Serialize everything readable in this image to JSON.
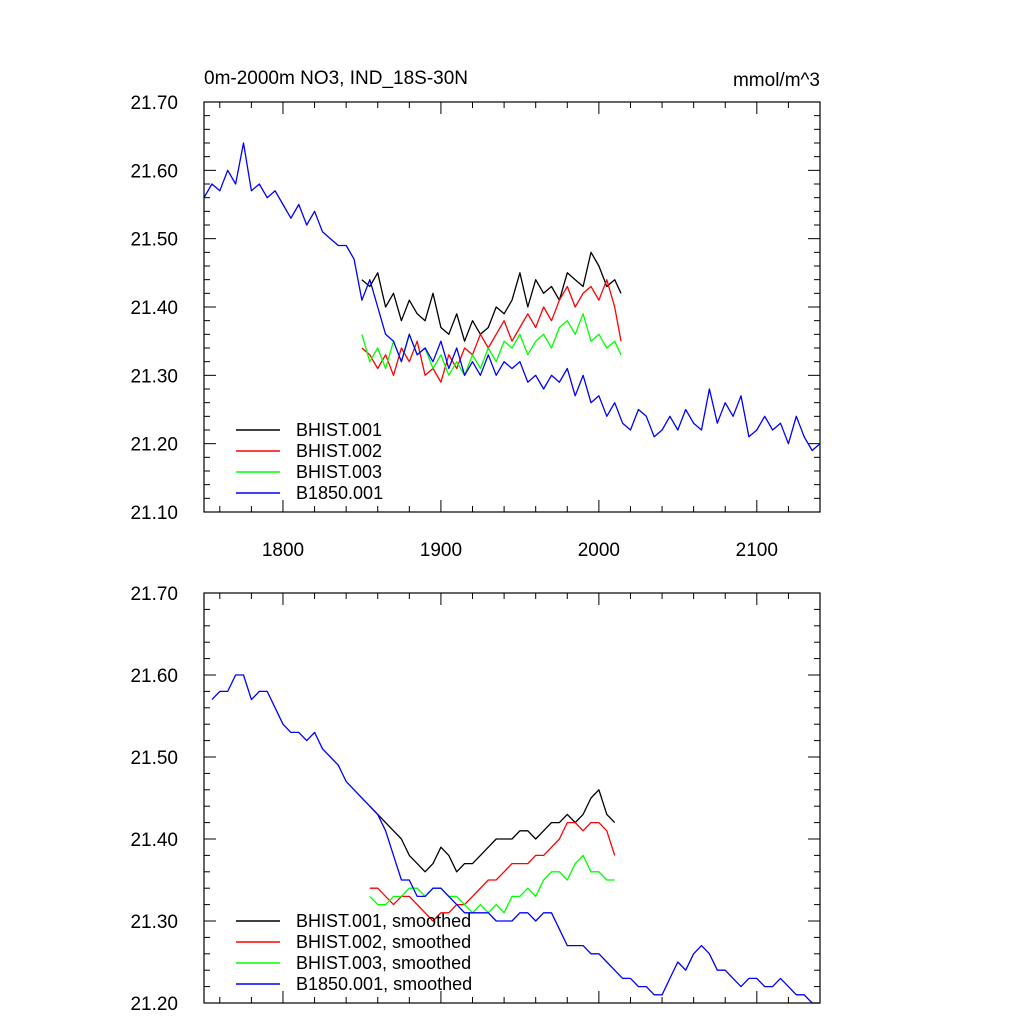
{
  "chart_data": [
    {
      "type": "line",
      "title": "0m-2000m NO3, IND_18S-30N",
      "units_label": "mmol/m^3",
      "xlim": [
        1750,
        2140
      ],
      "ylim": [
        21.1,
        21.7
      ],
      "x_ticks": [
        1800,
        1900,
        2000,
        2100
      ],
      "x_tick_labels": [
        "1800",
        "1900",
        "2000",
        "2100"
      ],
      "y_ticks": [
        21.1,
        21.2,
        21.3,
        21.4,
        21.5,
        21.6,
        21.7
      ],
      "y_tick_labels": [
        "21.10",
        "21.20",
        "21.30",
        "21.40",
        "21.50",
        "21.60",
        "21.70"
      ],
      "grid": false,
      "legend_position": "bottom-left",
      "series": [
        {
          "name": "BHIST.001",
          "color": "#000000",
          "x": [
            1850,
            1855,
            1860,
            1865,
            1870,
            1875,
            1880,
            1885,
            1890,
            1895,
            1900,
            1905,
            1910,
            1915,
            1920,
            1925,
            1930,
            1935,
            1940,
            1945,
            1950,
            1955,
            1960,
            1965,
            1970,
            1975,
            1980,
            1985,
            1990,
            1995,
            2000,
            2005,
            2010,
            2014
          ],
          "y": [
            21.44,
            21.43,
            21.45,
            21.4,
            21.42,
            21.38,
            21.41,
            21.39,
            21.38,
            21.42,
            21.37,
            21.36,
            21.39,
            21.35,
            21.38,
            21.36,
            21.37,
            21.4,
            21.39,
            21.41,
            21.45,
            21.4,
            21.44,
            21.42,
            21.43,
            21.41,
            21.45,
            21.44,
            21.43,
            21.48,
            21.46,
            21.43,
            21.44,
            21.42
          ]
        },
        {
          "name": "BHIST.002",
          "color": "#ff0000",
          "x": [
            1850,
            1855,
            1860,
            1865,
            1870,
            1875,
            1880,
            1885,
            1890,
            1895,
            1900,
            1905,
            1910,
            1915,
            1920,
            1925,
            1930,
            1935,
            1940,
            1945,
            1950,
            1955,
            1960,
            1965,
            1970,
            1975,
            1980,
            1985,
            1990,
            1995,
            2000,
            2005,
            2010,
            2014
          ],
          "y": [
            21.34,
            21.33,
            21.31,
            21.33,
            21.3,
            21.34,
            21.32,
            21.35,
            21.3,
            21.31,
            21.29,
            21.33,
            21.31,
            21.34,
            21.33,
            21.36,
            21.34,
            21.36,
            21.38,
            21.35,
            21.37,
            21.39,
            21.37,
            21.4,
            21.38,
            21.41,
            21.43,
            21.4,
            21.42,
            21.43,
            21.41,
            21.44,
            21.4,
            21.35
          ]
        },
        {
          "name": "BHIST.003",
          "color": "#00ff00",
          "x": [
            1850,
            1855,
            1860,
            1865,
            1870,
            1875,
            1880,
            1885,
            1890,
            1895,
            1900,
            1905,
            1910,
            1915,
            1920,
            1925,
            1930,
            1935,
            1940,
            1945,
            1950,
            1955,
            1960,
            1965,
            1970,
            1975,
            1980,
            1985,
            1990,
            1995,
            2000,
            2005,
            2010,
            2014
          ],
          "y": [
            21.36,
            21.32,
            21.34,
            21.31,
            21.35,
            21.32,
            21.36,
            21.33,
            21.34,
            21.31,
            21.33,
            21.3,
            21.32,
            21.3,
            21.33,
            21.31,
            21.34,
            21.32,
            21.35,
            21.34,
            21.36,
            21.33,
            21.35,
            21.36,
            21.34,
            21.37,
            21.38,
            21.36,
            21.39,
            21.35,
            21.36,
            21.34,
            21.35,
            21.33
          ]
        },
        {
          "name": "B1850.001",
          "color": "#0000ff",
          "x": [
            1750,
            1755,
            1760,
            1765,
            1770,
            1775,
            1780,
            1785,
            1790,
            1795,
            1800,
            1805,
            1810,
            1815,
            1820,
            1825,
            1830,
            1835,
            1840,
            1845,
            1850,
            1855,
            1860,
            1865,
            1870,
            1875,
            1880,
            1885,
            1890,
            1895,
            1900,
            1905,
            1910,
            1915,
            1920,
            1925,
            1930,
            1935,
            1940,
            1945,
            1950,
            1955,
            1960,
            1965,
            1970,
            1975,
            1980,
            1985,
            1990,
            1995,
            2000,
            2005,
            2010,
            2015,
            2020,
            2025,
            2030,
            2035,
            2040,
            2045,
            2050,
            2055,
            2060,
            2065,
            2070,
            2075,
            2080,
            2085,
            2090,
            2095,
            2100,
            2105,
            2110,
            2115,
            2120,
            2125,
            2130,
            2135,
            2140
          ],
          "y": [
            21.56,
            21.58,
            21.57,
            21.6,
            21.58,
            21.64,
            21.57,
            21.58,
            21.56,
            21.57,
            21.55,
            21.53,
            21.55,
            21.52,
            21.54,
            21.51,
            21.5,
            21.49,
            21.49,
            21.47,
            21.41,
            21.44,
            21.4,
            21.36,
            21.35,
            21.32,
            21.36,
            21.33,
            21.34,
            21.32,
            21.35,
            21.31,
            21.34,
            21.3,
            21.32,
            21.3,
            21.33,
            21.3,
            21.32,
            21.31,
            21.32,
            21.29,
            21.3,
            21.28,
            21.3,
            21.29,
            21.31,
            21.27,
            21.3,
            21.26,
            21.27,
            21.24,
            21.26,
            21.23,
            21.22,
            21.25,
            21.24,
            21.21,
            21.22,
            21.24,
            21.22,
            21.25,
            21.23,
            21.22,
            21.28,
            21.23,
            21.26,
            21.24,
            21.27,
            21.21,
            21.22,
            21.24,
            21.22,
            21.23,
            21.2,
            21.24,
            21.21,
            21.19,
            21.2
          ]
        }
      ]
    },
    {
      "type": "line",
      "xlim": [
        1750,
        2140
      ],
      "ylim": [
        21.2,
        21.7
      ],
      "y_ticks": [
        21.2,
        21.3,
        21.4,
        21.5,
        21.6,
        21.7
      ],
      "y_tick_labels": [
        "21.20",
        "21.30",
        "21.40",
        "21.50",
        "21.60",
        "21.70"
      ],
      "x_ticks": [
        1800,
        1900,
        2000,
        2100
      ],
      "grid": false,
      "legend_position": "bottom-left",
      "series": [
        {
          "name": "BHIST.001, smoothed",
          "color": "#000000",
          "x": [
            1855,
            1860,
            1865,
            1870,
            1875,
            1880,
            1885,
            1890,
            1895,
            1900,
            1905,
            1910,
            1915,
            1920,
            1925,
            1930,
            1935,
            1940,
            1945,
            1950,
            1955,
            1960,
            1965,
            1970,
            1975,
            1980,
            1985,
            1990,
            1995,
            2000,
            2005,
            2010
          ],
          "y": [
            21.44,
            21.43,
            21.42,
            21.41,
            21.4,
            21.38,
            21.37,
            21.36,
            21.37,
            21.39,
            21.38,
            21.36,
            21.37,
            21.37,
            21.38,
            21.39,
            21.4,
            21.4,
            21.4,
            21.41,
            21.41,
            21.4,
            21.41,
            21.42,
            21.42,
            21.43,
            21.42,
            21.43,
            21.45,
            21.46,
            21.43,
            21.42
          ]
        },
        {
          "name": "BHIST.002, smoothed",
          "color": "#ff0000",
          "x": [
            1855,
            1860,
            1865,
            1870,
            1875,
            1880,
            1885,
            1890,
            1895,
            1900,
            1905,
            1910,
            1915,
            1920,
            1925,
            1930,
            1935,
            1940,
            1945,
            1950,
            1955,
            1960,
            1965,
            1970,
            1975,
            1980,
            1985,
            1990,
            1995,
            2000,
            2005,
            2010
          ],
          "y": [
            21.34,
            21.34,
            21.33,
            21.32,
            21.33,
            21.33,
            21.32,
            21.31,
            21.3,
            21.31,
            21.31,
            21.32,
            21.32,
            21.33,
            21.34,
            21.35,
            21.35,
            21.36,
            21.37,
            21.37,
            21.37,
            21.38,
            21.38,
            21.39,
            21.4,
            21.42,
            21.42,
            21.41,
            21.42,
            21.42,
            21.41,
            21.38
          ]
        },
        {
          "name": "BHIST.003, smoothed",
          "color": "#00ff00",
          "x": [
            1855,
            1860,
            1865,
            1870,
            1875,
            1880,
            1885,
            1890,
            1895,
            1900,
            1905,
            1910,
            1915,
            1920,
            1925,
            1930,
            1935,
            1940,
            1945,
            1950,
            1955,
            1960,
            1965,
            1970,
            1975,
            1980,
            1985,
            1990,
            1995,
            2000,
            2005,
            2010
          ],
          "y": [
            21.33,
            21.32,
            21.32,
            21.33,
            21.33,
            21.34,
            21.34,
            21.33,
            21.34,
            21.34,
            21.33,
            21.33,
            21.32,
            21.31,
            21.32,
            21.31,
            21.32,
            21.31,
            21.33,
            21.33,
            21.34,
            21.33,
            21.35,
            21.36,
            21.36,
            21.35,
            21.37,
            21.38,
            21.36,
            21.36,
            21.35,
            21.35
          ]
        },
        {
          "name": "B1850.001, smoothed",
          "color": "#0000ff",
          "x": [
            1755,
            1760,
            1765,
            1770,
            1775,
            1780,
            1785,
            1790,
            1795,
            1800,
            1805,
            1810,
            1815,
            1820,
            1825,
            1830,
            1835,
            1840,
            1845,
            1850,
            1855,
            1860,
            1865,
            1870,
            1875,
            1880,
            1885,
            1890,
            1895,
            1900,
            1905,
            1910,
            1915,
            1920,
            1925,
            1930,
            1935,
            1940,
            1945,
            1950,
            1955,
            1960,
            1965,
            1970,
            1975,
            1980,
            1985,
            1990,
            1995,
            2000,
            2005,
            2010,
            2015,
            2020,
            2025,
            2030,
            2035,
            2040,
            2045,
            2050,
            2055,
            2060,
            2065,
            2070,
            2075,
            2080,
            2085,
            2090,
            2095,
            2100,
            2105,
            2110,
            2115,
            2120,
            2125,
            2130,
            2135,
            2140
          ],
          "y": [
            21.57,
            21.58,
            21.58,
            21.6,
            21.6,
            21.57,
            21.58,
            21.58,
            21.56,
            21.54,
            21.53,
            21.53,
            21.52,
            21.53,
            21.51,
            21.5,
            21.49,
            21.47,
            21.46,
            21.45,
            21.44,
            21.43,
            21.41,
            21.38,
            21.35,
            21.35,
            21.33,
            21.33,
            21.34,
            21.34,
            21.33,
            21.32,
            21.31,
            21.31,
            21.31,
            21.31,
            21.3,
            21.3,
            21.3,
            21.31,
            21.31,
            21.3,
            21.31,
            21.31,
            21.29,
            21.27,
            21.27,
            21.27,
            21.26,
            21.26,
            21.25,
            21.24,
            21.23,
            21.23,
            21.22,
            21.22,
            21.21,
            21.21,
            21.23,
            21.25,
            21.24,
            21.26,
            21.27,
            21.26,
            21.24,
            21.24,
            21.23,
            21.22,
            21.23,
            21.23,
            21.22,
            21.22,
            21.23,
            21.22,
            21.21,
            21.21,
            21.2,
            21.2
          ]
        }
      ]
    }
  ]
}
